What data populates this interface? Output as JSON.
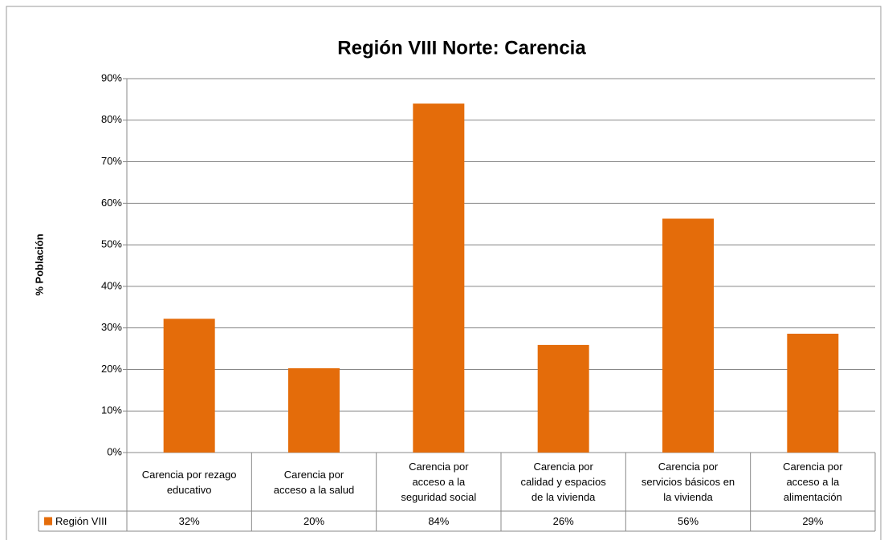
{
  "chart_data": {
    "type": "bar",
    "title": "Región VIII Norte: Carencia",
    "y_label": "% Población",
    "categories": [
      "Carencia por rezago educativo",
      "Carencia por acceso a la salud",
      "Carencia por acceso a la seguridad social",
      "Carencia por calidad y espacios de la vivienda",
      "Carencia por servicios básicos en la vivienda",
      "Carencia por acceso a la alimentación"
    ],
    "series": [
      {
        "name": "Región VIII",
        "color": "#e46c0a",
        "values": [
          32.2,
          20.3,
          84.0,
          25.9,
          56.3,
          28.6
        ],
        "value_labels": [
          "32%",
          "20%",
          "84%",
          "26%",
          "56%",
          "29%"
        ]
      }
    ],
    "ylim": [
      0,
      90
    ],
    "yticks": [
      {
        "value": 0,
        "label": "0%"
      },
      {
        "value": 10,
        "label": "10%"
      },
      {
        "value": 20,
        "label": "20%"
      },
      {
        "value": 30,
        "label": "30%"
      },
      {
        "value": 40,
        "label": "40%"
      },
      {
        "value": 50,
        "label": "50%"
      },
      {
        "value": 60,
        "label": "60%"
      },
      {
        "value": 70,
        "label": "70%"
      },
      {
        "value": 80,
        "label": "80%"
      },
      {
        "value": 90,
        "label": "90%"
      }
    ],
    "grid": true
  }
}
